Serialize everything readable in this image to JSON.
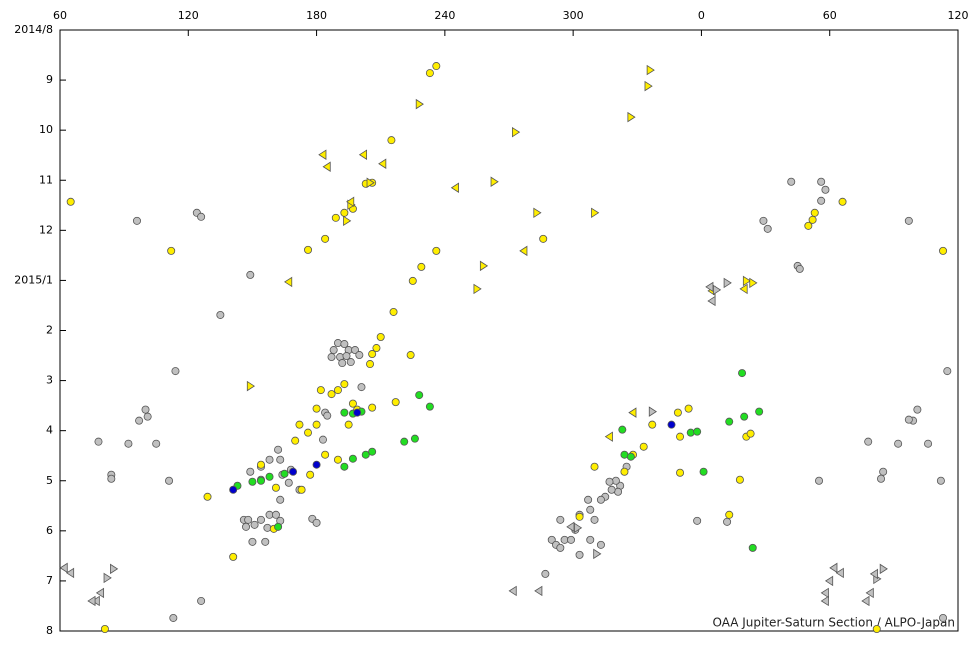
{
  "chart_data": {
    "type": "scatter",
    "credit": "OAA Jupiter-Saturn Section / ALPO-Japan",
    "xlim": [
      60,
      480
    ],
    "xticks": [
      60,
      120,
      180,
      240,
      300,
      {
        "value": 360,
        "label": "0"
      },
      {
        "value": 420,
        "label": "60"
      },
      {
        "value": 480,
        "label": "120"
      }
    ],
    "ylim": [
      12,
      0
    ],
    "yticks": [
      {
        "value": 0,
        "label": "2014/8"
      },
      {
        "value": 1,
        "label": "9"
      },
      {
        "value": 2,
        "label": "10"
      },
      {
        "value": 3,
        "label": "11"
      },
      {
        "value": 4,
        "label": "12"
      },
      {
        "value": 5,
        "label": "2015/1"
      },
      {
        "value": 6,
        "label": "2"
      },
      {
        "value": 7,
        "label": "3"
      },
      {
        "value": 8,
        "label": "4"
      },
      {
        "value": 9,
        "label": "5"
      },
      {
        "value": 10,
        "label": "6"
      },
      {
        "value": 11,
        "label": "7"
      },
      {
        "value": 12,
        "label": "8"
      }
    ],
    "series": [
      {
        "color": "#c0c0c0",
        "marker": "circle",
        "x": [
          96,
          124,
          126,
          149,
          135,
          114,
          100,
          101,
          97,
          92,
          105,
          78,
          84,
          84,
          111,
          113,
          126,
          190,
          193,
          188,
          195,
          187,
          191,
          198,
          196,
          192,
          200,
          194,
          201,
          184,
          162,
          158,
          163,
          154,
          149,
          154,
          168,
          164,
          172,
          146,
          147,
          148,
          151,
          154,
          158,
          161,
          157,
          150,
          156,
          163,
          167,
          178,
          180,
          183,
          185,
          163,
          322,
          320,
          317,
          321,
          315,
          307,
          313,
          308,
          310,
          303,
          301,
          294,
          290,
          292,
          294,
          296,
          299,
          303,
          308,
          313,
          287,
          318,
          325,
          358,
          372,
          402,
          416,
          418,
          416,
          389,
          391,
          405,
          406,
          457,
          459,
          461,
          457,
          438,
          452,
          466,
          445,
          444,
          415,
          472,
          473,
          475
        ],
        "values": [
          3.81,
          3.65,
          3.73,
          4.89,
          5.69,
          6.81,
          7.58,
          7.72,
          7.8,
          8.26,
          8.26,
          8.22,
          8.88,
          8.96,
          9.0,
          11.74,
          11.4,
          6.25,
          6.27,
          6.39,
          6.39,
          6.53,
          6.53,
          6.39,
          6.63,
          6.65,
          6.49,
          6.51,
          7.13,
          7.64,
          8.38,
          8.58,
          8.58,
          8.72,
          8.82,
          8.98,
          8.78,
          8.88,
          9.18,
          9.78,
          9.92,
          9.78,
          9.88,
          9.78,
          9.68,
          9.68,
          9.94,
          10.22,
          10.22,
          9.8,
          9.04,
          9.76,
          9.84,
          8.18,
          7.7,
          9.38,
          9.1,
          9.0,
          9.02,
          9.22,
          9.32,
          9.38,
          9.38,
          9.58,
          9.78,
          9.68,
          9.98,
          9.78,
          10.18,
          10.28,
          10.34,
          10.18,
          10.18,
          10.48,
          10.18,
          10.28,
          10.86,
          9.18,
          8.72,
          9.8,
          9.82,
          3.03,
          3.03,
          3.19,
          3.41,
          3.81,
          3.97,
          4.71,
          4.77,
          3.81,
          7.8,
          7.58,
          7.78,
          8.22,
          8.26,
          8.26,
          8.82,
          8.96,
          9.0,
          9.0,
          11.74,
          6.81
        ]
      },
      {
        "color": "#ffee00",
        "marker": "circle",
        "x": [
          236,
          233,
          65,
          112,
          215,
          203,
          206,
          189,
          197,
          193,
          286,
          236,
          229,
          225,
          176,
          184,
          216,
          210,
          208,
          206,
          205,
          224,
          193,
          190,
          187,
          182,
          180,
          172,
          176,
          170,
          180,
          197,
          199,
          217,
          206,
          195,
          184,
          190,
          177,
          173,
          161,
          154,
          129,
          141,
          160,
          303,
          310,
          324,
          328,
          333,
          337,
          349,
          354,
          350,
          350,
          378,
          381,
          383,
          373,
          410,
          412,
          413,
          426,
          473,
          442,
          81
        ],
        "values": [
          0.72,
          0.86,
          3.43,
          4.41,
          2.2,
          3.07,
          3.05,
          3.75,
          3.57,
          3.65,
          4.17,
          4.41,
          4.73,
          5.01,
          4.39,
          4.17,
          5.63,
          6.13,
          6.35,
          6.47,
          6.67,
          6.49,
          7.07,
          7.19,
          7.27,
          7.19,
          7.56,
          7.88,
          8.04,
          8.2,
          7.88,
          7.46,
          7.58,
          7.43,
          7.54,
          7.88,
          8.48,
          8.58,
          8.88,
          9.18,
          9.14,
          8.68,
          9.32,
          10.52,
          9.96,
          9.72,
          8.72,
          8.82,
          8.48,
          8.32,
          7.88,
          7.64,
          7.56,
          8.12,
          8.84,
          8.98,
          8.12,
          8.06,
          9.68,
          3.91,
          3.79,
          3.65,
          3.43,
          4.41,
          11.96,
          11.96
        ]
      },
      {
        "color": "#22dd22",
        "marker": "circle",
        "x": [
          143,
          150,
          154,
          158,
          165,
          193,
          197,
          201,
          228,
          233,
          221,
          226,
          197,
          203,
          206,
          193,
          323,
          324,
          327,
          355,
          358,
          361,
          379,
          380,
          387,
          373,
          384,
          162
        ],
        "values": [
          9.1,
          9.02,
          9.0,
          8.92,
          8.86,
          7.64,
          7.66,
          7.62,
          7.29,
          7.52,
          8.22,
          8.16,
          8.56,
          8.48,
          8.42,
          8.72,
          7.98,
          8.48,
          8.52,
          8.04,
          8.02,
          8.82,
          6.85,
          7.72,
          7.62,
          7.82,
          10.34,
          9.92
        ]
      },
      {
        "color": "#0000cc",
        "marker": "circle",
        "x": [
          141,
          169,
          180,
          199,
          346
        ],
        "values": [
          9.18,
          8.82,
          8.68,
          7.64,
          7.88
        ]
      },
      {
        "color": "#ffee00",
        "marker": "triangle-right",
        "x": [
          336,
          335,
          327,
          228,
          273,
          263,
          283,
          310,
          258,
          255,
          149,
          205,
          196,
          194,
          381,
          384
        ],
        "values": [
          0.8,
          1.12,
          1.74,
          1.48,
          2.04,
          3.03,
          3.65,
          3.65,
          4.71,
          5.17,
          7.11,
          3.05,
          3.49,
          3.81,
          5.01,
          5.05
        ]
      },
      {
        "color": "#ffee00",
        "marker": "triangle-left",
        "x": [
          245,
          211,
          202,
          185,
          183,
          167,
          277,
          196,
          380,
          365,
          317,
          328
        ],
        "values": [
          3.15,
          2.67,
          2.49,
          2.73,
          2.49,
          5.03,
          4.41,
          3.43,
          5.17,
          5.21,
          8.12,
          7.64
        ]
      },
      {
        "color": "#c0c0c0",
        "marker": "triangle-right",
        "x": [
          85,
          82,
          311,
          302,
          337,
          372,
          445,
          442,
          367
        ],
        "values": [
          10.76,
          10.94,
          10.46,
          9.94,
          7.62,
          5.05,
          10.76,
          10.96,
          5.19
        ]
      },
      {
        "color": "#c0c0c0",
        "marker": "triangle-left",
        "x": [
          62,
          65,
          79,
          77,
          75,
          272,
          284,
          299,
          364,
          365,
          422,
          425,
          441,
          439,
          418,
          418,
          437,
          420
        ],
        "values": [
          10.74,
          10.84,
          11.24,
          11.4,
          11.4,
          11.2,
          11.2,
          9.92,
          5.13,
          5.41,
          10.74,
          10.84,
          10.86,
          11.24,
          11.24,
          11.4,
          11.4,
          11.0
        ]
      }
    ]
  }
}
